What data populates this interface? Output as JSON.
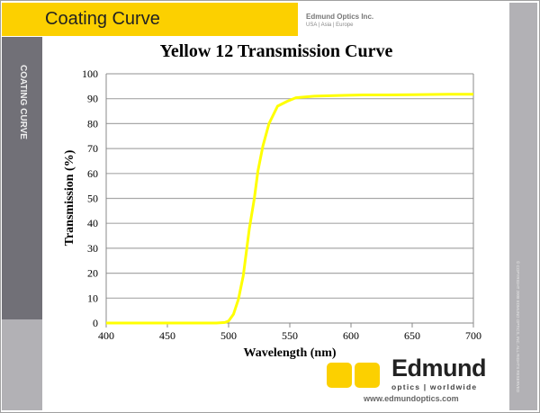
{
  "header": {
    "title": "Coating Curve",
    "company": "Edmund Optics Inc.",
    "regions": "USA | Asia | Europe"
  },
  "sidebar": {
    "label": "COATING CURVE"
  },
  "copyright": "© COPYRIGHT 2008 EDMUND OPTICS, INC. ALL RIGHTS RESERVED",
  "footer": {
    "brand": "Edmund",
    "tagline": "optics | worldwide",
    "url": "www.edmundoptics.com"
  },
  "colors": {
    "curve": "#ffff00",
    "accent": "#fcd000",
    "sidebar": "#717077"
  },
  "chart_data": {
    "type": "line",
    "title": "Yellow 12 Transmission Curve",
    "xlabel": "Wavelength (nm)",
    "ylabel": "Transmission (%)",
    "xlim": [
      400,
      700
    ],
    "ylim": [
      0,
      100
    ],
    "xticks": [
      400,
      450,
      500,
      550,
      600,
      650,
      700
    ],
    "yticks": [
      0,
      10,
      20,
      30,
      40,
      50,
      60,
      70,
      80,
      90,
      100
    ],
    "grid": "horizontal",
    "series": [
      {
        "color": "#ffff00",
        "x": [
          400,
          450,
          490,
          497,
          500,
          504,
          508,
          512,
          517,
          521,
          524,
          528,
          533,
          540,
          548,
          555,
          570,
          590,
          610,
          630,
          650,
          680,
          700
        ],
        "y": [
          0,
          0,
          0,
          0.2,
          0.8,
          3.5,
          9.5,
          19,
          38,
          50,
          61,
          71,
          80,
          87,
          89,
          90.4,
          91,
          91.3,
          91.5,
          91.5,
          91.6,
          91.8,
          91.8
        ]
      }
    ]
  }
}
